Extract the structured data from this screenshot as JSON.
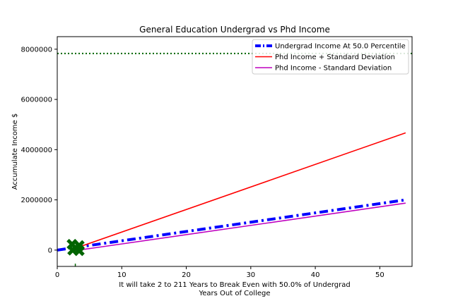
{
  "chart_data": {
    "type": "line",
    "title": "General Education Undergrad vs Phd Income",
    "ylabel": "Accumulate Income $",
    "xlabel_lines": [
      "It will take 2 to 211 Years to Break Even with 50.0% of Undergrad",
      "Years Out of College"
    ],
    "xlim": [
      0,
      55
    ],
    "ylim": [
      -650000,
      8500000
    ],
    "x_ticks": [
      0,
      10,
      20,
      30,
      40,
      50
    ],
    "y_ticks": [
      0,
      2000000,
      4000000,
      6000000,
      8000000
    ],
    "grid": false,
    "legend_position": "top-right",
    "series": [
      {
        "name": "Undergrad Income At 50.0 Percentile",
        "color": "#0000ff",
        "style": "dashdot-thick",
        "x": [
          0,
          54
        ],
        "y": [
          0,
          2000000
        ]
      },
      {
        "name": "Phd Income + Standard Deviation",
        "color": "#ff0000",
        "style": "solid",
        "x": [
          2,
          54
        ],
        "y": [
          0,
          4670000
        ]
      },
      {
        "name": "Phd Income - Standard Deviation",
        "color": "#bf00bf",
        "style": "solid",
        "x": [
          2,
          54
        ],
        "y": [
          -50000,
          1870000
        ]
      }
    ],
    "reference_lines": [
      {
        "orientation": "horizontal",
        "value": 7830000,
        "color": "#006400",
        "style": "dotted"
      },
      {
        "orientation": "vertical",
        "value": 2.8,
        "y_range": [
          -650000,
          -540000
        ],
        "color": "#006400",
        "style": "dashed"
      }
    ],
    "markers": [
      {
        "x": 2.3,
        "y": 230000,
        "color": "#006400",
        "symbol": "x"
      },
      {
        "x": 3.4,
        "y": 180000,
        "color": "#006400",
        "symbol": "x"
      },
      {
        "x": 2.4,
        "y": 0,
        "color": "#006400",
        "symbol": "x"
      },
      {
        "x": 3.4,
        "y": -20000,
        "color": "#006400",
        "symbol": "x"
      }
    ]
  }
}
